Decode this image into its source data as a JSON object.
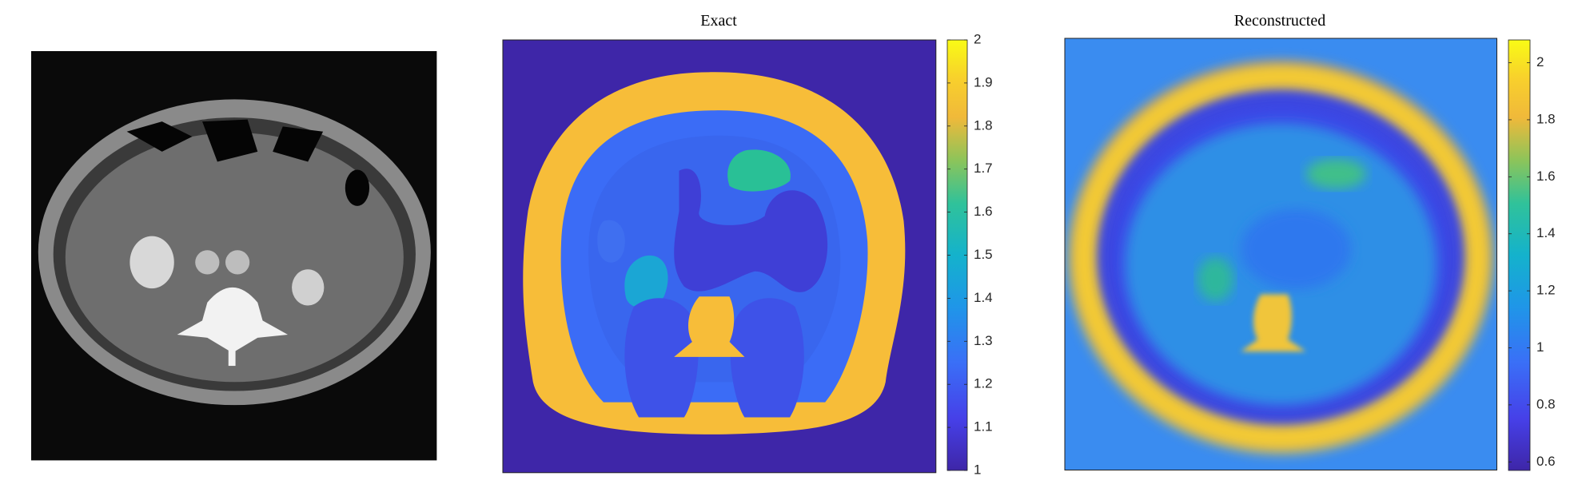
{
  "chart_data": [
    {
      "type": "heatmap",
      "title": "Exact",
      "clim": [
        1,
        2
      ],
      "cticks": [
        1,
        1.1,
        1.2,
        1.3,
        1.4,
        1.5,
        1.6,
        1.7,
        1.8,
        1.9,
        2
      ]
    },
    {
      "type": "heatmap",
      "title": "Reconstructed",
      "clim": [
        0.57,
        2.08
      ],
      "cticks": [
        0.6,
        0.8,
        1,
        1.2,
        1.4,
        1.6,
        1.8,
        2
      ]
    }
  ]
}
